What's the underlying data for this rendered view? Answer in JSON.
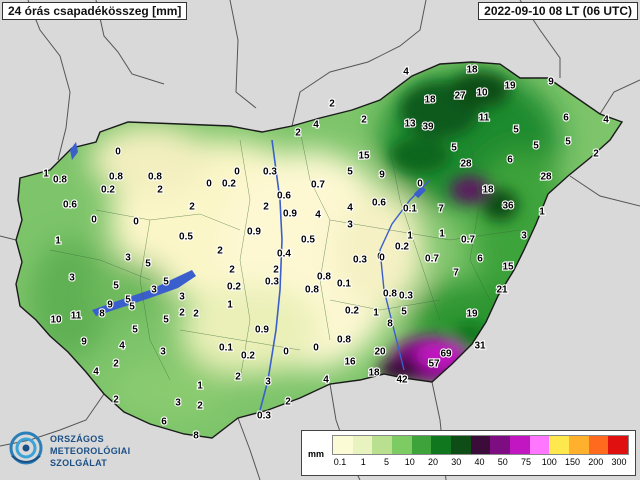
{
  "header": {
    "title": "24 órás csapadékösszeg [mm]",
    "datetime": "2022-09-10 08 LT (06 UTC)"
  },
  "logo": {
    "line1": "ORSZÁGOS",
    "line2": "METEOROLÓGIAI",
    "line3": "SZOLGÁLAT"
  },
  "legend": {
    "unit": "mm",
    "ticks": [
      "0.1",
      "1",
      "5",
      "10",
      "20",
      "30",
      "40",
      "50",
      "75",
      "100",
      "150",
      "200",
      "300"
    ],
    "colors": [
      "#fbfcd6",
      "#e9f3bf",
      "#b8e08f",
      "#7ccb63",
      "#3ea33a",
      "#11771f",
      "#0f4d16",
      "#3b0b3a",
      "#7d0d80",
      "#c116c1",
      "#ff77ff",
      "#ffe84d",
      "#ffb12e",
      "#ff6a1f",
      "#e01010"
    ]
  },
  "colors": {
    "background": "#d9d9d9",
    "hungary_base": "#74c064",
    "river": "#3a5fcd",
    "lake": "#3a5fcd",
    "border": "#1a1a1a",
    "boundary": "#555555"
  },
  "stations": [
    {
      "v": "4"
    },
    {
      "v": "18"
    },
    {
      "v": "9"
    },
    {
      "v": "18"
    },
    {
      "v": "27"
    },
    {
      "v": "10"
    },
    {
      "v": "19"
    },
    {
      "v": "2"
    },
    {
      "v": "2"
    },
    {
      "v": "11"
    },
    {
      "v": "6"
    },
    {
      "v": "4"
    },
    {
      "v": "4"
    },
    {
      "v": "13"
    },
    {
      "v": "39"
    },
    {
      "v": "5"
    },
    {
      "v": "5"
    },
    {
      "v": "5"
    },
    {
      "v": "2"
    },
    {
      "v": "0"
    },
    {
      "v": "0.8"
    },
    {
      "v": "15"
    },
    {
      "v": "5"
    },
    {
      "v": "28"
    },
    {
      "v": "6"
    },
    {
      "v": "2"
    },
    {
      "v": "1"
    },
    {
      "v": "0.8"
    },
    {
      "v": "0.8"
    },
    {
      "v": "0"
    },
    {
      "v": "0.2"
    },
    {
      "v": "0"
    },
    {
      "v": "0.3"
    },
    {
      "v": "5"
    },
    {
      "v": "9"
    },
    {
      "v": "0.7"
    },
    {
      "v": "0"
    },
    {
      "v": "28"
    },
    {
      "v": "0.6"
    },
    {
      "v": "0.2"
    },
    {
      "v": "2"
    },
    {
      "v": "0.6"
    },
    {
      "v": "0.9"
    },
    {
      "v": "18"
    },
    {
      "v": "4"
    },
    {
      "v": "0.6"
    },
    {
      "v": "0.1"
    },
    {
      "v": "7"
    },
    {
      "v": "36"
    },
    {
      "v": "1"
    },
    {
      "v": "0"
    },
    {
      "v": "0"
    },
    {
      "v": "2"
    },
    {
      "v": "2"
    },
    {
      "v": "4"
    },
    {
      "v": "1"
    },
    {
      "v": "0.5"
    },
    {
      "v": "0.9"
    },
    {
      "v": "0.5"
    },
    {
      "v": "3"
    },
    {
      "v": "1"
    },
    {
      "v": "3"
    },
    {
      "v": "2"
    },
    {
      "v": "0.7"
    },
    {
      "v": "0"
    },
    {
      "v": "0.2"
    },
    {
      "v": "3"
    },
    {
      "v": "5"
    },
    {
      "v": "1"
    },
    {
      "v": "0.4"
    },
    {
      "v": "0.3"
    },
    {
      "v": "0"
    },
    {
      "v": "0.7"
    },
    {
      "v": "6"
    },
    {
      "v": "3"
    },
    {
      "v": "5"
    },
    {
      "v": "2"
    },
    {
      "v": "2"
    },
    {
      "v": "0.3"
    },
    {
      "v": "0.8"
    },
    {
      "v": "7"
    },
    {
      "v": "15"
    },
    {
      "v": "5"
    },
    {
      "v": "3"
    },
    {
      "v": "0.2"
    },
    {
      "v": "0.8"
    },
    {
      "v": "0.1"
    },
    {
      "v": "5"
    },
    {
      "v": "3"
    },
    {
      "v": "2"
    },
    {
      "v": "0.8"
    },
    {
      "v": "0.3"
    },
    {
      "v": "21"
    },
    {
      "v": "9"
    },
    {
      "v": "5"
    },
    {
      "v": "1"
    },
    {
      "v": "0.2"
    },
    {
      "v": "1"
    },
    {
      "v": "5"
    },
    {
      "v": "10"
    },
    {
      "v": "11"
    },
    {
      "v": "8"
    },
    {
      "v": "5"
    },
    {
      "v": "2"
    },
    {
      "v": "19"
    },
    {
      "v": "5"
    },
    {
      "v": "0.9"
    },
    {
      "v": "8"
    },
    {
      "v": "9"
    },
    {
      "v": "4"
    },
    {
      "v": "0.1"
    },
    {
      "v": "0.8"
    },
    {
      "v": "31"
    },
    {
      "v": "2"
    },
    {
      "v": "0.2"
    },
    {
      "v": "0"
    },
    {
      "v": "0"
    },
    {
      "v": "20"
    },
    {
      "v": "69"
    },
    {
      "v": "4"
    },
    {
      "v": "3"
    },
    {
      "v": "16"
    },
    {
      "v": "57"
    },
    {
      "v": "2"
    },
    {
      "v": "1"
    },
    {
      "v": "3"
    },
    {
      "v": "4"
    },
    {
      "v": "18"
    },
    {
      "v": "42"
    },
    {
      "v": "2"
    },
    {
      "v": "3"
    },
    {
      "v": "2"
    },
    {
      "v": "2"
    },
    {
      "v": "6"
    },
    {
      "v": "0.3"
    },
    {
      "v": "8"
    }
  ]
}
